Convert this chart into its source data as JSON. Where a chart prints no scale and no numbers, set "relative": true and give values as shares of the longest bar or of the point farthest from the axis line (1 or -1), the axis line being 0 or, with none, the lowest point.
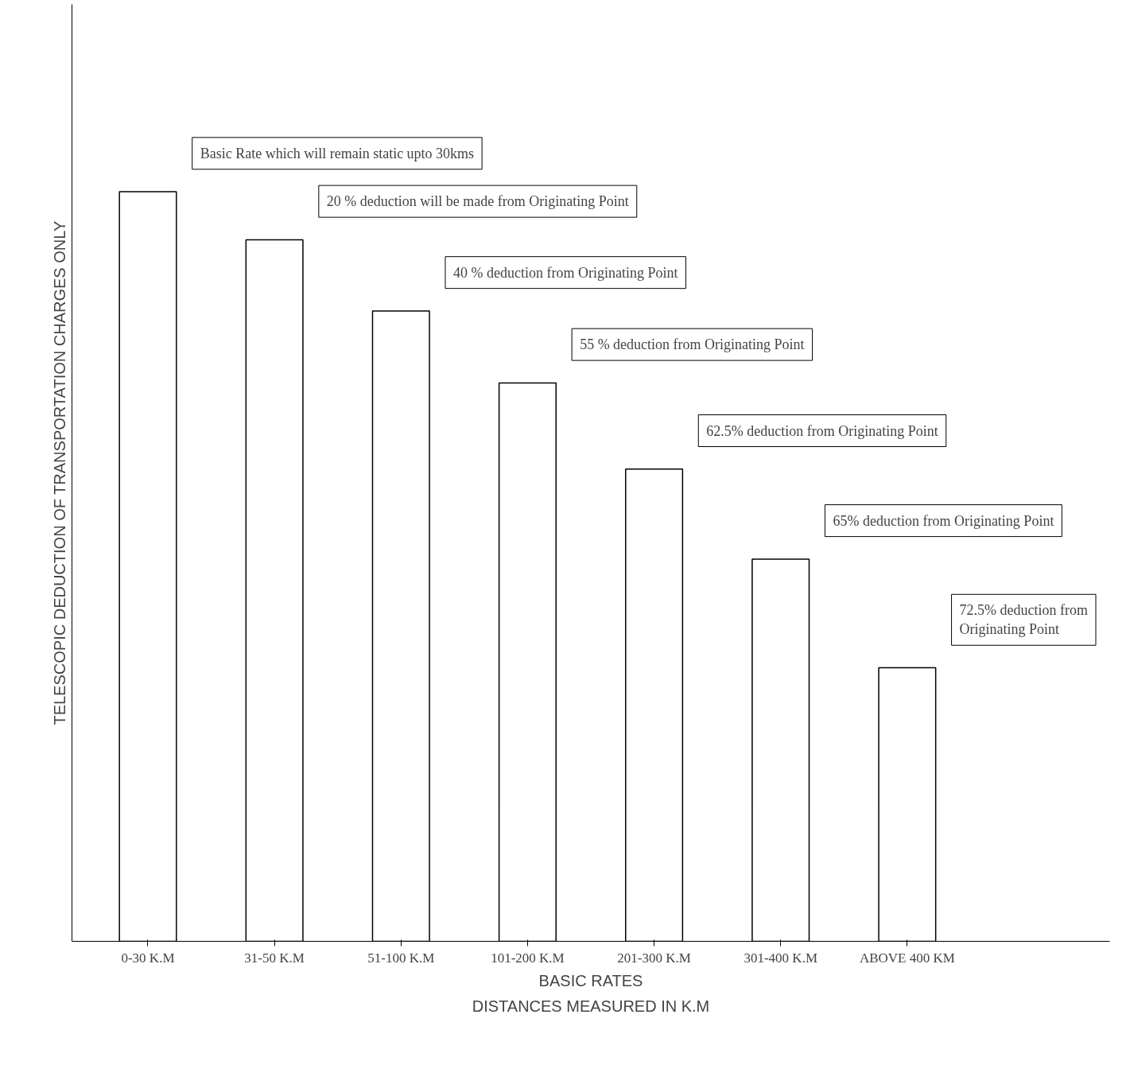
{
  "chart_data": {
    "type": "bar",
    "relative": true,
    "ylabel": "TELESCOPIC DEDUCTION OF TRANSPORTATION CHARGES ONLY",
    "xlabel": "BASIC RATES",
    "categories": [
      "0-30 K.M",
      "31-50 K.M",
      "51-100 K.M",
      "101-200 K.M",
      "201-300 K.M",
      "301-400 K.M",
      "ABOVE 400 KM"
    ],
    "values": [
      1,
      0.936,
      0.841,
      0.745,
      0.63,
      0.51,
      0.365
    ],
    "color": "#ffffff",
    "grid": false,
    "annotations": [
      "Basic Rate which will remain static upto 30kms",
      "20 % deduction will be made from Originating Point",
      "40 % deduction from Originating Point",
      "55 % deduction from Originating Point",
      "62.5% deduction from Originating Point",
      "65% deduction from Originating Point",
      "72.5% deduction from Originating Point",
      "DISTANCES MEASURED IN K.M"
    ]
  }
}
